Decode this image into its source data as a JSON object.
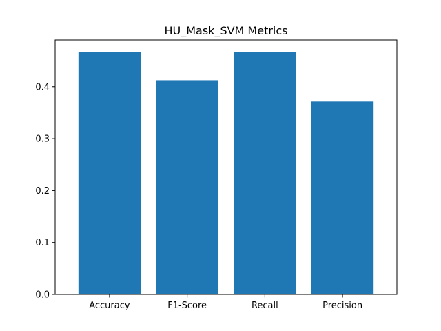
{
  "chart_data": {
    "type": "bar",
    "title": "HU_Mask_SVM Metrics",
    "xlabel": "",
    "ylabel": "",
    "categories": [
      "Accuracy",
      "F1-Score",
      "Recall",
      "Precision"
    ],
    "values": [
      0.4667,
      0.4124,
      0.4667,
      0.3714
    ],
    "ylim": [
      0,
      0.49
    ],
    "yticks": [
      0.0,
      0.1,
      0.2,
      0.3,
      0.4
    ],
    "ytick_labels": [
      "0.0",
      "0.1",
      "0.2",
      "0.3",
      "0.4"
    ],
    "grid": false,
    "legend": "none",
    "bar_color": "#1f77b4"
  }
}
